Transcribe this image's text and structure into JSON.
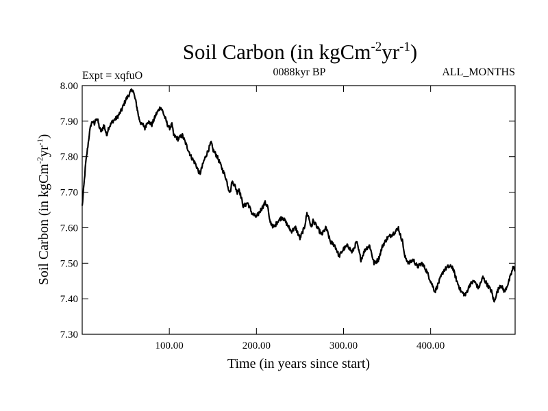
{
  "chart_data": {
    "type": "line",
    "title": {
      "prefix": "Soil Carbon (in kgCm",
      "sup1": "-2",
      "mid": "yr",
      "sup2": "-1",
      "suffix": ")"
    },
    "subtitle_left": "Expt = xqfuO",
    "subtitle_center": "0088kyr BP",
    "subtitle_right": "ALL_MONTHS",
    "xlabel": "Time (in years since start)",
    "ylabel": {
      "prefix": "Soil Carbon (in kgCm",
      "sup1": "-2",
      "mid": "yr",
      "sup2": "-1",
      "suffix": ")"
    },
    "xlim": [
      0,
      497
    ],
    "ylim": [
      7.3,
      8.0
    ],
    "xticks": [
      {
        "value": 100,
        "label": "100.00"
      },
      {
        "value": 200,
        "label": "200.00"
      },
      {
        "value": 300,
        "label": "300.00"
      },
      {
        "value": 400,
        "label": "400.00"
      }
    ],
    "yticks": [
      {
        "value": 7.3,
        "label": "7.30"
      },
      {
        "value": 7.4,
        "label": "7.40"
      },
      {
        "value": 7.5,
        "label": "7.50"
      },
      {
        "value": 7.6,
        "label": "7.60"
      },
      {
        "value": 7.7,
        "label": "7.70"
      },
      {
        "value": 7.8,
        "label": "7.80"
      },
      {
        "value": 7.9,
        "label": "7.90"
      },
      {
        "value": 8.0,
        "label": "8.00"
      }
    ],
    "series": [
      {
        "name": "Soil Carbon",
        "color": "#000000",
        "x": [
          0,
          2,
          4,
          6,
          8,
          10,
          12,
          14,
          16,
          18,
          20,
          22,
          25,
          28,
          30,
          35,
          40,
          45,
          50,
          55,
          58,
          60,
          62,
          65,
          68,
          70,
          72,
          75,
          80,
          85,
          90,
          92,
          95,
          98,
          100,
          103,
          105,
          110,
          115,
          120,
          125,
          130,
          135,
          140,
          145,
          148,
          150,
          155,
          160,
          165,
          168,
          170,
          172,
          175,
          178,
          180,
          183,
          185,
          190,
          195,
          200,
          205,
          210,
          213,
          215,
          220,
          225,
          230,
          235,
          240,
          245,
          250,
          255,
          258,
          260,
          263,
          265,
          270,
          275,
          280,
          285,
          290,
          295,
          300,
          305,
          310,
          315,
          320,
          325,
          330,
          335,
          340,
          345,
          350,
          355,
          360,
          363,
          365,
          368,
          370,
          375,
          380,
          385,
          390,
          395,
          400,
          405,
          410,
          415,
          420,
          425,
          430,
          435,
          440,
          445,
          450,
          455,
          460,
          465,
          470,
          473,
          475,
          480,
          485,
          490,
          495,
          497
        ],
        "y": [
          7.66,
          7.72,
          7.78,
          7.82,
          7.86,
          7.89,
          7.9,
          7.89,
          7.91,
          7.9,
          7.88,
          7.87,
          7.89,
          7.86,
          7.88,
          7.9,
          7.91,
          7.93,
          7.96,
          7.98,
          7.99,
          7.97,
          7.95,
          7.91,
          7.89,
          7.89,
          7.88,
          7.9,
          7.89,
          7.92,
          7.94,
          7.93,
          7.91,
          7.89,
          7.88,
          7.89,
          7.86,
          7.85,
          7.86,
          7.83,
          7.8,
          7.78,
          7.75,
          7.79,
          7.82,
          7.84,
          7.82,
          7.8,
          7.77,
          7.74,
          7.71,
          7.7,
          7.73,
          7.72,
          7.7,
          7.71,
          7.68,
          7.66,
          7.67,
          7.64,
          7.63,
          7.65,
          7.67,
          7.66,
          7.62,
          7.6,
          7.62,
          7.63,
          7.61,
          7.59,
          7.6,
          7.57,
          7.6,
          7.64,
          7.63,
          7.6,
          7.62,
          7.6,
          7.58,
          7.6,
          7.56,
          7.55,
          7.52,
          7.54,
          7.55,
          7.53,
          7.56,
          7.51,
          7.54,
          7.55,
          7.5,
          7.51,
          7.55,
          7.57,
          7.58,
          7.59,
          7.6,
          7.58,
          7.56,
          7.52,
          7.5,
          7.51,
          7.49,
          7.5,
          7.48,
          7.45,
          7.42,
          7.45,
          7.48,
          7.49,
          7.49,
          7.45,
          7.42,
          7.41,
          7.44,
          7.45,
          7.43,
          7.46,
          7.44,
          7.42,
          7.39,
          7.41,
          7.44,
          7.42,
          7.45,
          7.49,
          7.48
        ]
      }
    ]
  }
}
